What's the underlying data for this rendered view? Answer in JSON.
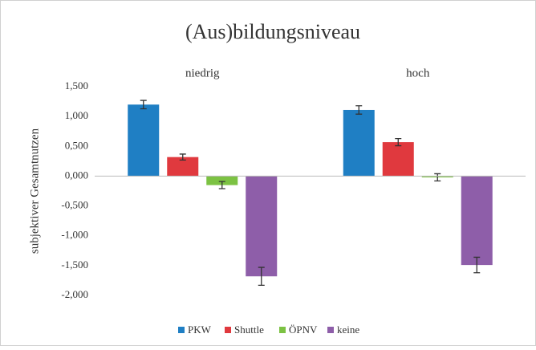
{
  "chart_data": {
    "type": "bar",
    "title": "(Aus)bildungsniveau",
    "y_label": "subjektiver Gesamtnutzen",
    "categories": [
      "niedrig",
      "hoch"
    ],
    "series": [
      {
        "name": "PKW",
        "color": "#1f7fc4",
        "values": [
          1.2,
          1.11
        ],
        "errors": [
          0.07,
          0.07
        ]
      },
      {
        "name": "Shuttle",
        "color": "#e0393e",
        "values": [
          0.32,
          0.57
        ],
        "errors": [
          0.05,
          0.06
        ]
      },
      {
        "name": "ÖPNV",
        "color": "#7cc243",
        "values": [
          -0.15,
          -0.02
        ],
        "errors": [
          0.06,
          0.06
        ]
      },
      {
        "name": "keine",
        "color": "#8e5ea9",
        "values": [
          -1.68,
          -1.49
        ],
        "errors": [
          0.15,
          0.13
        ]
      }
    ],
    "ylim": [
      -2,
      1.5
    ],
    "yticks": [
      {
        "value": -2,
        "label": "-2,000"
      },
      {
        "value": -1.5,
        "label": "-1,500"
      },
      {
        "value": -1,
        "label": "-1,000"
      },
      {
        "value": -0.5,
        "label": "-0,500"
      },
      {
        "value": 0,
        "label": "0,000"
      },
      {
        "value": 0.5,
        "label": "0,500"
      },
      {
        "value": 1,
        "label": "1,000"
      },
      {
        "value": 1.5,
        "label": "1,500"
      }
    ],
    "legend": "bottom"
  }
}
